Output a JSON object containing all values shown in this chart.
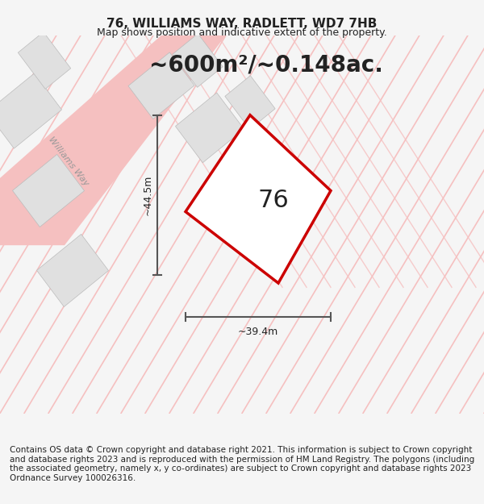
{
  "title": "76, WILLIAMS WAY, RADLETT, WD7 7HB",
  "subtitle": "Map shows position and indicative extent of the property.",
  "area_text": "~600m²/~0.148ac.",
  "dim_height": "~44.5m",
  "dim_width": "~39.4m",
  "number_label": "76",
  "footer": "Contains OS data © Crown copyright and database right 2021. This information is subject to Crown copyright and database rights 2023 and is reproduced with the permission of HM Land Registry. The polygons (including the associated geometry, namely x, y co-ordinates) are subject to Crown copyright and database rights 2023 Ordnance Survey 100026316.",
  "bg_color": "#f5f5f5",
  "map_bg": "#ffffff",
  "road_color": "#f5c0c0",
  "building_color": "#e0e0e0",
  "boundary_color": "#cc0000",
  "dim_color": "#555555",
  "street_label": "Williams Way",
  "title_fontsize": 11,
  "subtitle_fontsize": 9,
  "area_fontsize": 20,
  "number_fontsize": 22,
  "footer_fontsize": 7.5,
  "street_fontsize": 8
}
